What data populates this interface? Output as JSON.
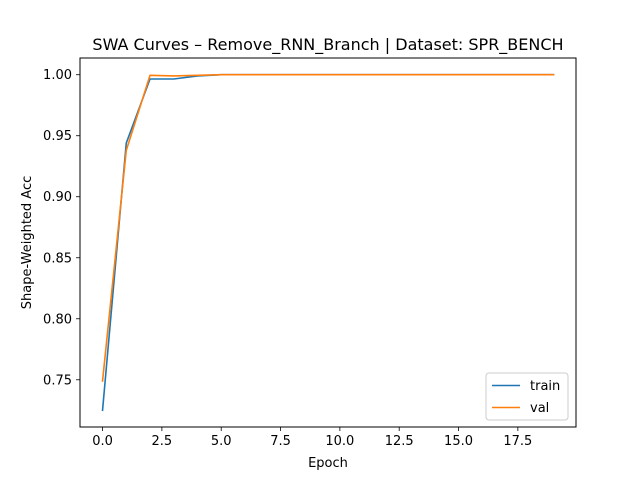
{
  "chart_data": {
    "type": "line",
    "title": "SWA Curves – Remove_RNN_Branch | Dataset: SPR_BENCH",
    "xlabel": "Epoch",
    "ylabel": "Shape-Weighted Acc",
    "xlim": [
      -0.95,
      19.95
    ],
    "ylim": [
      0.7113,
      1.0137
    ],
    "x_ticks": [
      0.0,
      2.5,
      5.0,
      7.5,
      10.0,
      12.5,
      15.0,
      17.5
    ],
    "x_tick_labels": [
      "0.0",
      "2.5",
      "5.0",
      "7.5",
      "10.0",
      "12.5",
      "15.0",
      "17.5"
    ],
    "y_ticks": [
      0.75,
      0.8,
      0.85,
      0.9,
      0.95,
      1.0
    ],
    "y_tick_labels": [
      "0.75",
      "0.80",
      "0.85",
      "0.90",
      "0.95",
      "1.00"
    ],
    "grid": false,
    "legend_position": "lower-right",
    "x": [
      0,
      1,
      2,
      3,
      4,
      5,
      6,
      7,
      8,
      9,
      10,
      11,
      12,
      13,
      14,
      15,
      16,
      17,
      18,
      19
    ],
    "series": [
      {
        "name": "train",
        "color": "#1f77b4",
        "values": [
          0.725,
          0.944,
          0.9965,
          0.9965,
          0.999,
          1.0,
          1.0,
          1.0,
          1.0,
          1.0,
          1.0,
          1.0,
          1.0,
          1.0,
          1.0,
          1.0,
          1.0,
          1.0,
          1.0,
          1.0
        ]
      },
      {
        "name": "val",
        "color": "#ff7f0e",
        "values": [
          0.749,
          0.938,
          0.9995,
          0.999,
          0.9995,
          1.0,
          1.0,
          1.0,
          1.0,
          1.0,
          1.0,
          1.0,
          1.0,
          1.0,
          1.0,
          1.0,
          1.0,
          1.0,
          1.0,
          1.0
        ]
      }
    ]
  }
}
